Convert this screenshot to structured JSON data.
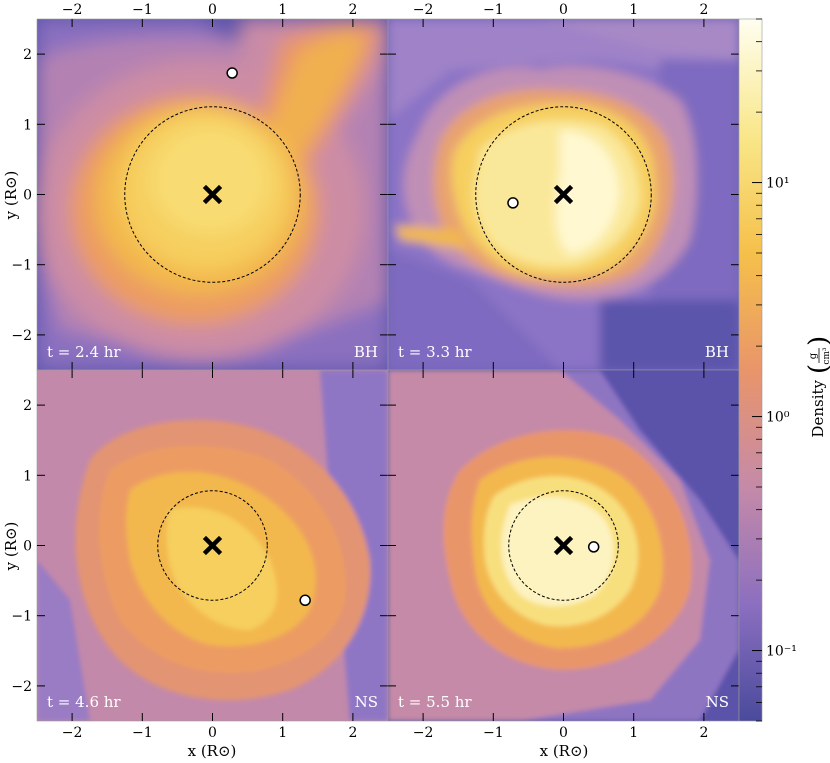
{
  "chart_data": {
    "type": "heatmap",
    "shared_axes": {
      "xlabel": "x  (R⊙)",
      "ylabel": "y  (R⊙)",
      "xlim": [
        -2.5,
        2.5
      ],
      "ylim": [
        -2.5,
        2.5
      ],
      "xticks": [
        -2,
        -1,
        0,
        1,
        2
      ],
      "yticks": [
        -2,
        -1,
        0,
        1,
        2
      ],
      "xtick_labels": [
        "−2",
        "−1",
        "0",
        "1",
        "2"
      ],
      "ytick_labels": [
        "−2",
        "−1",
        "0",
        "1",
        "2"
      ]
    },
    "colorbar": {
      "label": "Density",
      "unit_numerator": "g",
      "unit_denominator": "cm³",
      "scale": "log",
      "range": [
        0.05,
        50
      ],
      "ticks": [
        0.1,
        1,
        10
      ],
      "tick_labels": [
        "10⁻¹",
        "10⁰",
        "10¹"
      ],
      "colormap": [
        "#4a4a9c",
        "#8c6fc0",
        "#c58aa8",
        "#e9956a",
        "#f5c04a",
        "#f9e78a",
        "#fffef0"
      ]
    },
    "panels": [
      {
        "time_label": "t = 2.4 hr",
        "object_label": "BH",
        "center": [
          0,
          0
        ],
        "circle_radius": 1.25,
        "companion": [
          0.28,
          1.73
        ],
        "show_top_ticks": true,
        "show_left_ticks": true
      },
      {
        "time_label": "t = 3.3 hr",
        "object_label": "BH",
        "center": [
          0,
          0
        ],
        "circle_radius": 1.25,
        "companion": [
          -0.72,
          -0.12
        ],
        "show_top_ticks": true,
        "show_left_ticks": false
      },
      {
        "time_label": "t = 4.6 hr",
        "object_label": "NS",
        "center": [
          0,
          0
        ],
        "circle_radius": 0.78,
        "companion": [
          1.32,
          -0.78
        ],
        "show_top_ticks": false,
        "show_left_ticks": true
      },
      {
        "time_label": "t = 5.5 hr",
        "object_label": "NS",
        "center": [
          0,
          0
        ],
        "circle_radius": 0.78,
        "companion": [
          0.43,
          -0.02
        ],
        "show_top_ticks": false,
        "show_left_ticks": false
      }
    ]
  }
}
